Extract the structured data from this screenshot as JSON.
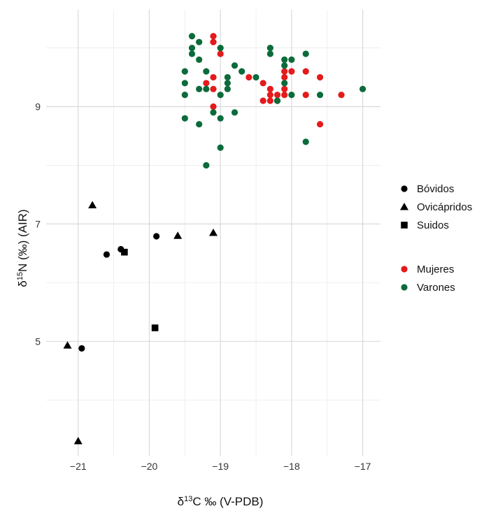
{
  "chart_data": {
    "type": "scatter",
    "xlabel": "δ13C ‰ (V-PDB)",
    "ylabel": "δ15N (‰) (AIR)",
    "xlim": [
      -21.45,
      -16.75
    ],
    "ylim": [
      3.05,
      10.65
    ],
    "xticks": [
      -21,
      -20,
      -19,
      -18,
      -17
    ],
    "yticks": [
      5,
      7,
      9
    ],
    "minor_yticks": [
      4,
      6,
      8,
      10
    ],
    "minor_xticks": [
      -21.5,
      -20.5,
      -19.5,
      -18.5,
      -17.5
    ],
    "grid": true,
    "legend_position": "right",
    "legend_shapes": [
      {
        "label": "Bóvidos",
        "shape": "circle"
      },
      {
        "label": "Ovicápridos",
        "shape": "triangle"
      },
      {
        "label": "Suidos",
        "shape": "square"
      }
    ],
    "legend_colors": [
      {
        "label": "Mujeres",
        "color": "#e41a1c"
      },
      {
        "label": "Varones",
        "color": "#0b6b3a"
      }
    ],
    "series": [
      {
        "name": "Bóvidos",
        "shape": "circle",
        "color": "#000000",
        "points": [
          [
            -20.95,
            4.88
          ],
          [
            -20.6,
            6.48
          ],
          [
            -20.4,
            6.57
          ],
          [
            -19.9,
            6.79
          ]
        ]
      },
      {
        "name": "Ovicápridos",
        "shape": "triangle",
        "color": "#000000",
        "points": [
          [
            -21.15,
            4.93
          ],
          [
            -21.0,
            3.3
          ],
          [
            -20.8,
            7.32
          ],
          [
            -19.6,
            6.8
          ],
          [
            -19.1,
            6.85
          ]
        ]
      },
      {
        "name": "Suidos",
        "shape": "square",
        "color": "#000000",
        "points": [
          [
            -20.35,
            6.52
          ],
          [
            -19.92,
            5.23
          ]
        ]
      },
      {
        "name": "Mujeres",
        "shape": "circle",
        "color": "#e41a1c",
        "points": [
          [
            -19.1,
            10.2
          ],
          [
            -19.1,
            10.1
          ],
          [
            -19.0,
            9.9
          ],
          [
            -19.1,
            9.5
          ],
          [
            -19.2,
            9.4
          ],
          [
            -19.1,
            9.3
          ],
          [
            -19.1,
            9.0
          ],
          [
            -18.6,
            9.5
          ],
          [
            -18.4,
            9.4
          ],
          [
            -18.3,
            9.3
          ],
          [
            -18.2,
            9.2
          ],
          [
            -18.3,
            9.2
          ],
          [
            -18.4,
            9.1
          ],
          [
            -18.3,
            9.1
          ],
          [
            -18.2,
            9.1
          ],
          [
            -18.1,
            9.6
          ],
          [
            -18.1,
            9.5
          ],
          [
            -18.1,
            9.3
          ],
          [
            -18.0,
            9.6
          ],
          [
            -17.8,
            9.6
          ],
          [
            -17.6,
            9.5
          ],
          [
            -17.8,
            9.2
          ],
          [
            -17.6,
            8.7
          ],
          [
            -17.3,
            9.2
          ],
          [
            -18.1,
            9.2
          ]
        ]
      },
      {
        "name": "Varones",
        "shape": "circle",
        "color": "#0b6b3a",
        "points": [
          [
            -19.4,
            10.2
          ],
          [
            -19.3,
            10.1
          ],
          [
            -19.4,
            10.0
          ],
          [
            -19.4,
            9.9
          ],
          [
            -19.3,
            9.8
          ],
          [
            -19.5,
            9.6
          ],
          [
            -19.2,
            9.6
          ],
          [
            -19.5,
            9.4
          ],
          [
            -19.5,
            9.2
          ],
          [
            -19.3,
            9.3
          ],
          [
            -19.2,
            9.3
          ],
          [
            -19.0,
            10.0
          ],
          [
            -19.0,
            9.2
          ],
          [
            -18.9,
            9.5
          ],
          [
            -18.9,
            9.4
          ],
          [
            -18.9,
            9.3
          ],
          [
            -18.8,
            9.7
          ],
          [
            -18.7,
            9.6
          ],
          [
            -18.5,
            9.5
          ],
          [
            -18.3,
            10.0
          ],
          [
            -18.3,
            9.9
          ],
          [
            -18.1,
            9.8
          ],
          [
            -18.1,
            9.7
          ],
          [
            -18.0,
            9.8
          ],
          [
            -18.1,
            9.4
          ],
          [
            -18.2,
            9.1
          ],
          [
            -18.0,
            9.2
          ],
          [
            -17.8,
            9.9
          ],
          [
            -17.6,
            9.2
          ],
          [
            -17.0,
            9.3
          ],
          [
            -19.5,
            8.8
          ],
          [
            -19.3,
            8.7
          ],
          [
            -19.1,
            8.9
          ],
          [
            -19.0,
            8.8
          ],
          [
            -18.8,
            8.9
          ],
          [
            -19.0,
            8.3
          ],
          [
            -19.2,
            8.0
          ],
          [
            -17.8,
            8.4
          ]
        ]
      }
    ]
  }
}
